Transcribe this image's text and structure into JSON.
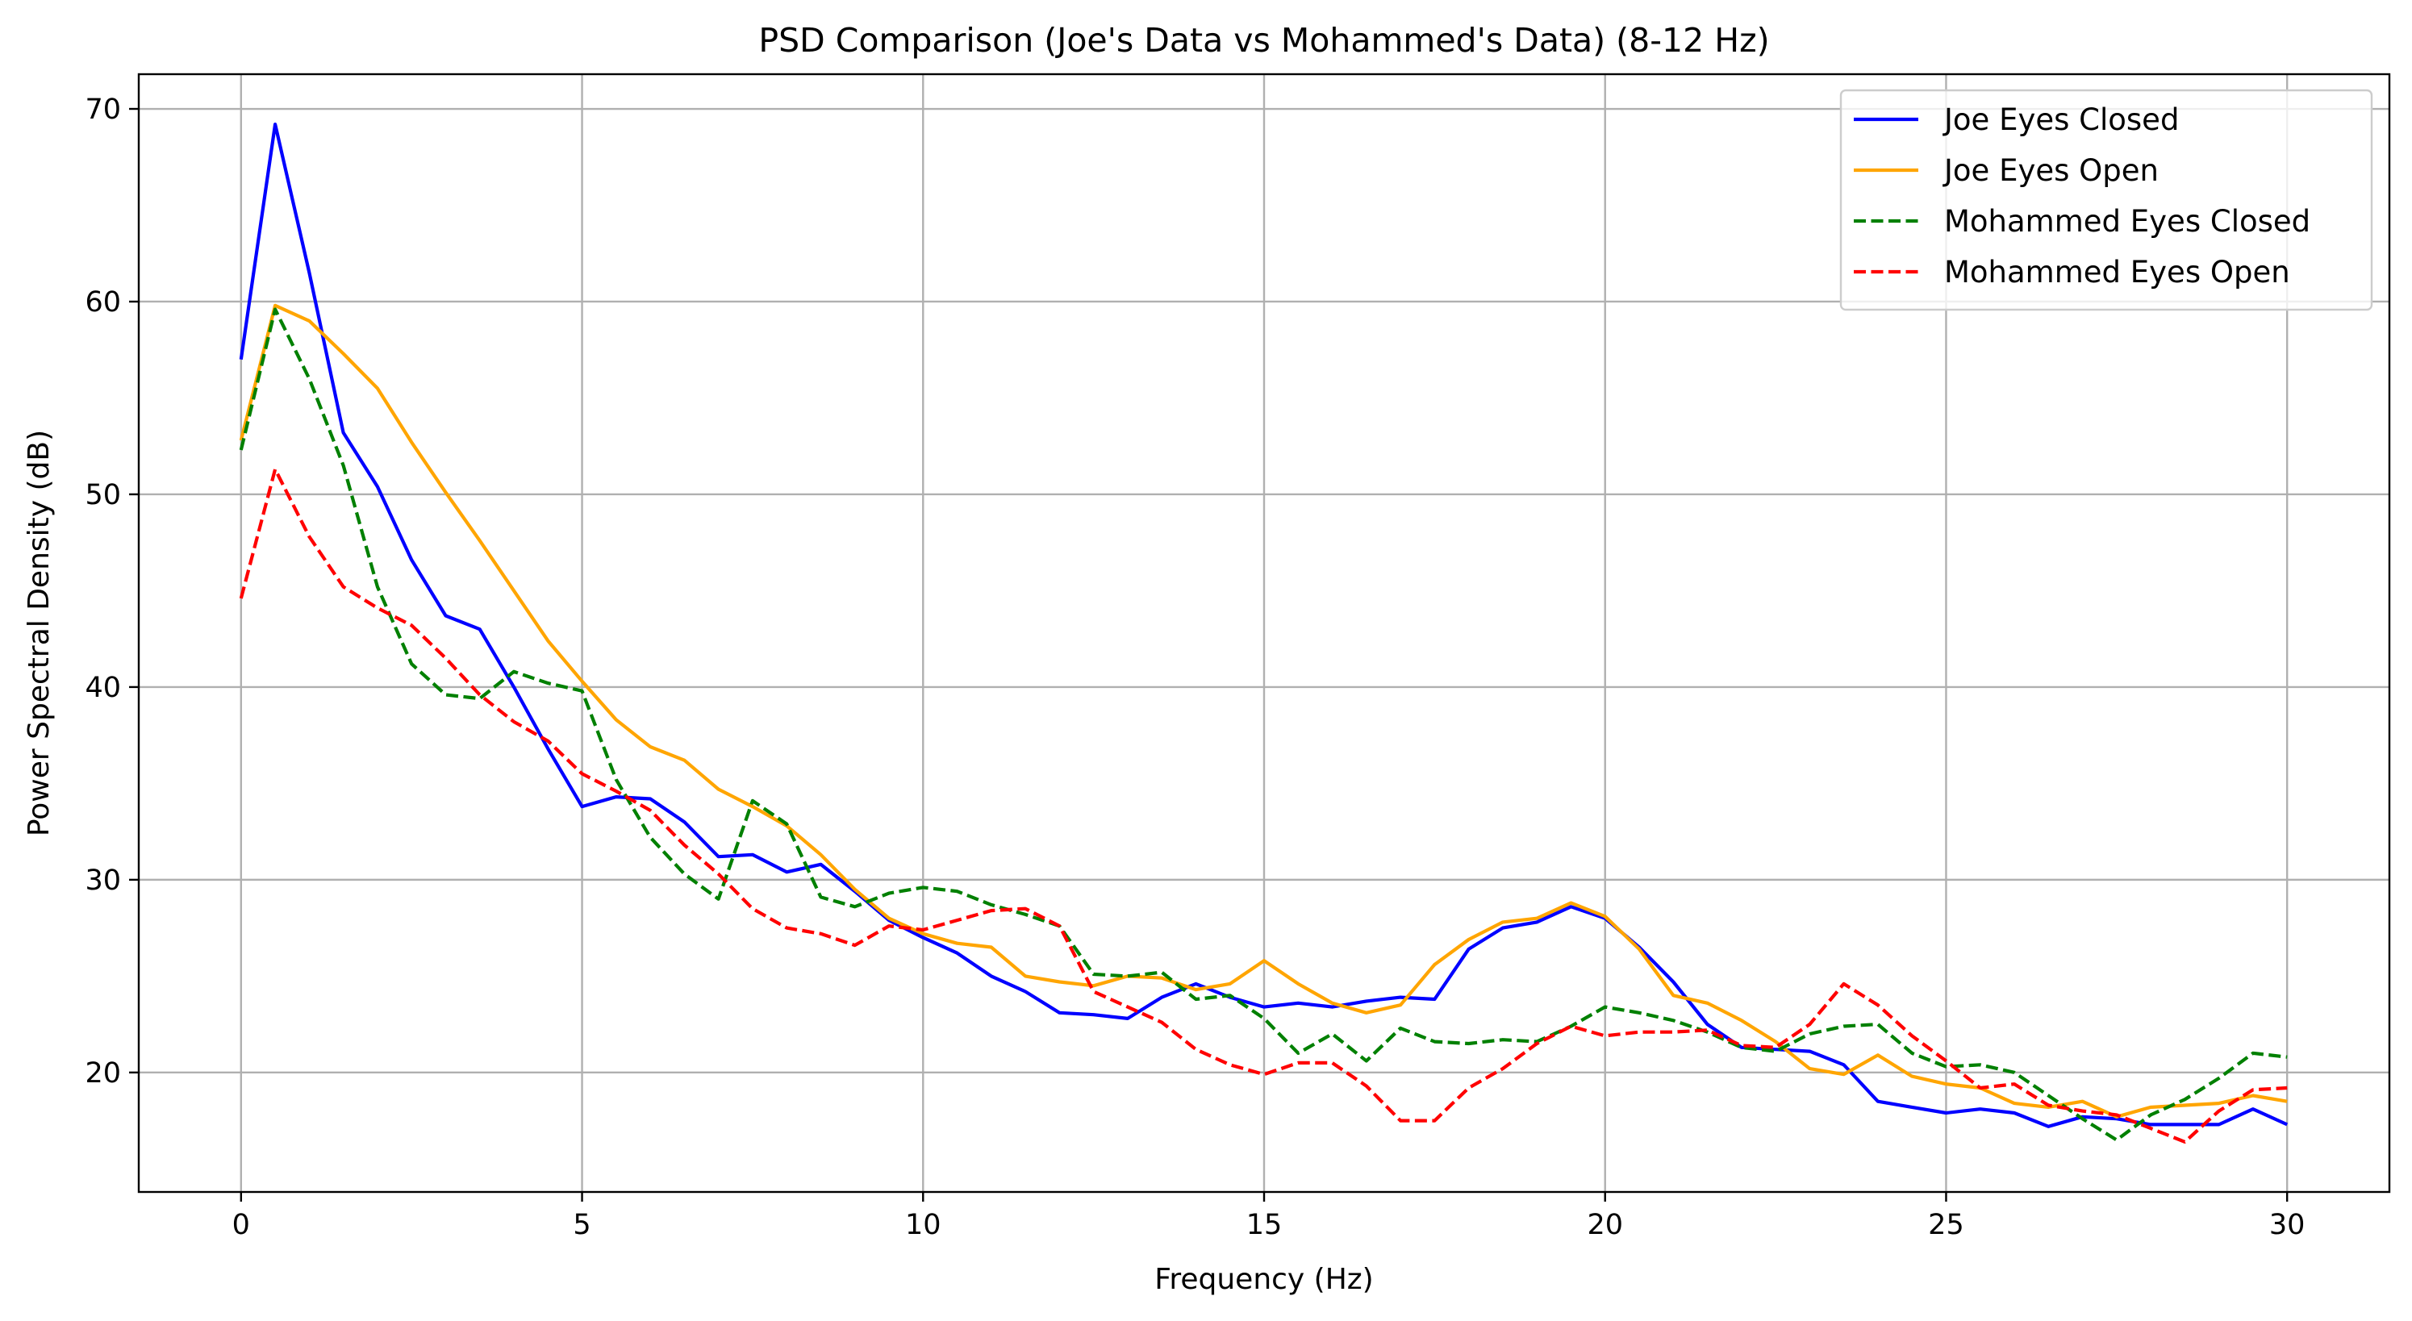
{
  "chart_data": {
    "type": "line",
    "title": "PSD Comparison (Joe's Data vs Mohammed's Data) (8-12 Hz)",
    "xlabel": "Frequency (Hz)",
    "ylabel": "Power Spectral Density (dB)",
    "xlim": [
      -1.5,
      31.5
    ],
    "ylim": [
      13.8,
      71.8
    ],
    "xticks": [
      0,
      5,
      10,
      15,
      20,
      25,
      30
    ],
    "yticks": [
      20,
      30,
      40,
      50,
      60,
      70
    ],
    "grid": true,
    "legend_position": "top-right",
    "x": [
      0,
      0.5,
      1,
      1.5,
      2,
      2.5,
      3,
      3.5,
      4,
      4.5,
      5,
      5.5,
      6,
      6.5,
      7,
      7.5,
      8,
      8.5,
      9,
      9.5,
      10,
      10.5,
      11,
      11.5,
      12,
      12.5,
      13,
      13.5,
      14,
      14.5,
      15,
      15.5,
      16,
      16.5,
      17,
      17.5,
      18,
      18.5,
      19,
      19.5,
      20,
      20.5,
      21,
      21.5,
      22,
      22.5,
      23,
      23.5,
      24,
      24.5,
      25,
      25.5,
      26,
      26.5,
      27,
      27.5,
      28,
      28.5,
      29,
      29.5,
      30
    ],
    "series": [
      {
        "name": "Joe Eyes Closed",
        "color": "#0000ff",
        "dash": "solid",
        "values": [
          57.0,
          69.2,
          61.5,
          53.2,
          50.4,
          46.6,
          43.7,
          43.0,
          40.0,
          36.8,
          33.8,
          34.3,
          34.2,
          33.0,
          31.2,
          31.3,
          30.4,
          30.8,
          29.4,
          27.9,
          27.0,
          26.2,
          25.0,
          24.2,
          23.1,
          23.0,
          22.8,
          23.9,
          24.6,
          23.9,
          23.4,
          23.6,
          23.4,
          23.7,
          23.9,
          23.8,
          26.4,
          27.5,
          27.8,
          28.6,
          28.0,
          26.5,
          24.7,
          22.5,
          21.3,
          21.2,
          21.1,
          20.4,
          18.5,
          18.2,
          17.9,
          18.1,
          17.9,
          17.2,
          17.7,
          17.6,
          17.3,
          17.3,
          17.3,
          18.1,
          17.3
        ]
      },
      {
        "name": "Joe Eyes Open",
        "color": "#ffa500",
        "dash": "solid",
        "values": [
          52.8,
          59.8,
          59.0,
          57.3,
          55.5,
          52.7,
          50.1,
          47.6,
          45.0,
          42.4,
          40.3,
          38.3,
          36.9,
          36.2,
          34.7,
          33.8,
          32.8,
          31.3,
          29.5,
          28.0,
          27.2,
          26.7,
          26.5,
          25.0,
          24.7,
          24.5,
          25.0,
          24.9,
          24.3,
          24.6,
          25.8,
          24.6,
          23.6,
          23.1,
          23.5,
          25.6,
          26.9,
          27.8,
          28.0,
          28.8,
          28.1,
          26.4,
          24.0,
          23.6,
          22.7,
          21.6,
          20.2,
          19.9,
          20.9,
          19.8,
          19.4,
          19.2,
          18.4,
          18.2,
          18.5,
          17.7,
          18.2,
          18.3,
          18.4,
          18.8,
          18.5
        ]
      },
      {
        "name": "Mohammed Eyes Closed",
        "color": "#008000",
        "dash": "dashed",
        "values": [
          52.3,
          59.6,
          56.0,
          51.5,
          45.2,
          41.2,
          39.6,
          39.4,
          40.8,
          40.2,
          39.8,
          35.2,
          32.2,
          30.3,
          29.0,
          34.1,
          32.9,
          29.1,
          28.6,
          29.3,
          29.6,
          29.4,
          28.7,
          28.2,
          27.6,
          25.1,
          25.0,
          25.2,
          23.8,
          24.0,
          22.8,
          21.0,
          22.0,
          20.6,
          22.3,
          21.6,
          21.5,
          21.7,
          21.6,
          22.4,
          23.4,
          23.1,
          22.7,
          22.1,
          21.3,
          21.1,
          22.0,
          22.4,
          22.5,
          21.0,
          20.3,
          20.4,
          20.0,
          18.8,
          17.6,
          16.5,
          17.8,
          18.6,
          19.7,
          21.0,
          20.8
        ]
      },
      {
        "name": "Mohammed Eyes Open",
        "color": "#ff0000",
        "dash": "dashed",
        "values": [
          44.6,
          51.3,
          47.8,
          45.2,
          44.1,
          43.2,
          41.5,
          39.6,
          38.2,
          37.2,
          35.5,
          34.6,
          33.6,
          31.8,
          30.3,
          28.5,
          27.5,
          27.2,
          26.6,
          27.6,
          27.4,
          27.9,
          28.4,
          28.5,
          27.6,
          24.2,
          23.4,
          22.6,
          21.2,
          20.4,
          19.9,
          20.5,
          20.5,
          19.3,
          17.5,
          17.5,
          19.2,
          20.2,
          21.5,
          22.4,
          21.9,
          22.1,
          22.1,
          22.2,
          21.4,
          21.3,
          22.5,
          24.6,
          23.5,
          21.9,
          20.6,
          19.2,
          19.4,
          18.3,
          18.0,
          17.8,
          17.1,
          16.4,
          18.0,
          19.1,
          19.2
        ]
      }
    ]
  }
}
